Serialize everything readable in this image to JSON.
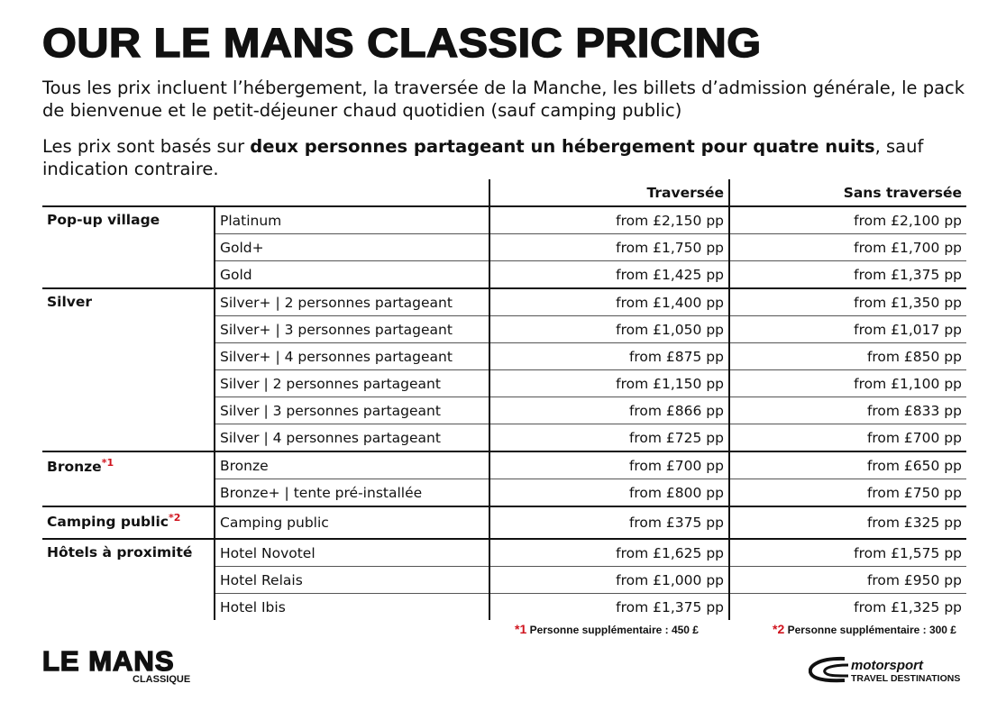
{
  "title": "OUR LE MANS CLASSIC PRICING",
  "intro": {
    "line1": "Tous les prix incluent l’hébergement, la traversée de la Manche, les billets d’admission générale, le pack de bienvenue et le petit-déjeuner chaud quotidien (sauf camping public)",
    "line2_pre": "Les prix sont basés sur ",
    "line2_bold": "deux personnes partageant un hébergement pour quatre nuits",
    "line2_post": ", sauf indication contraire."
  },
  "table": {
    "headers": [
      "",
      "",
      "Traversée",
      "Sans traversée"
    ],
    "groups": [
      {
        "name": "Pop-up village",
        "note": "",
        "rows": [
          {
            "option": "Platinum",
            "with": "from £2,150 pp",
            "without": "from £2,100 pp"
          },
          {
            "option": "Gold+",
            "with": "from £1,750 pp",
            "without": "from £1,700 pp"
          },
          {
            "option": "Gold",
            "with": "from £1,425 pp",
            "without": "from £1,375 pp"
          }
        ]
      },
      {
        "name": "Silver",
        "note": "",
        "rows": [
          {
            "option": "Silver+ | 2 personnes partageant",
            "with": "from £1,400 pp",
            "without": "from £1,350 pp"
          },
          {
            "option": "Silver+ | 3 personnes partageant",
            "with": "from £1,050 pp",
            "without": "from £1,017 pp"
          },
          {
            "option": "Silver+ | 4 personnes partageant",
            "with": "from £875 pp",
            "without": "from £850 pp"
          },
          {
            "option": "Silver | 2 personnes partageant",
            "with": "from £1,150 pp",
            "without": "from £1,100 pp"
          },
          {
            "option": "Silver | 3 personnes partageant",
            "with": "from £866 pp",
            "without": "from £833 pp"
          },
          {
            "option": "Silver | 4 personnes partageant",
            "with": "from £725 pp",
            "without": "from £700 pp"
          }
        ]
      },
      {
        "name": "Bronze",
        "note": "*1",
        "rows": [
          {
            "option": "Bronze",
            "with": "from £700 pp",
            "without": "from £650 pp"
          },
          {
            "option": "Bronze+ | tente pré-installée",
            "with": "from £800 pp",
            "without": "from £750 pp"
          }
        ]
      },
      {
        "name": "Camping public",
        "note": "*2",
        "rows": [
          {
            "option": "Camping public",
            "with": "from £375 pp",
            "without": "from £325 pp"
          }
        ]
      },
      {
        "name": "Hôtels à proximité",
        "note": "",
        "rows": [
          {
            "option": "Hotel Novotel",
            "with": "from £1,625 pp",
            "without": "from £1,575 pp"
          },
          {
            "option": "Hotel Relais",
            "with": "from £1,000 pp",
            "without": "from £950 pp"
          },
          {
            "option": "Hotel Ibis",
            "with": "from £1,375 pp",
            "without": "from £1,325 pp"
          }
        ]
      }
    ]
  },
  "footnotes": [
    {
      "mark": "*1",
      "text": "Personne supplémentaire : 450 £"
    },
    {
      "mark": "*2",
      "text": "Personne supplémentaire : 300 £"
    }
  ],
  "logos": {
    "left": "LE MANS CLASSIQUE",
    "right": "motorsport TRAVEL DESTINATIONS"
  },
  "colors": {
    "accent": "#d0141e",
    "text": "#111111"
  }
}
